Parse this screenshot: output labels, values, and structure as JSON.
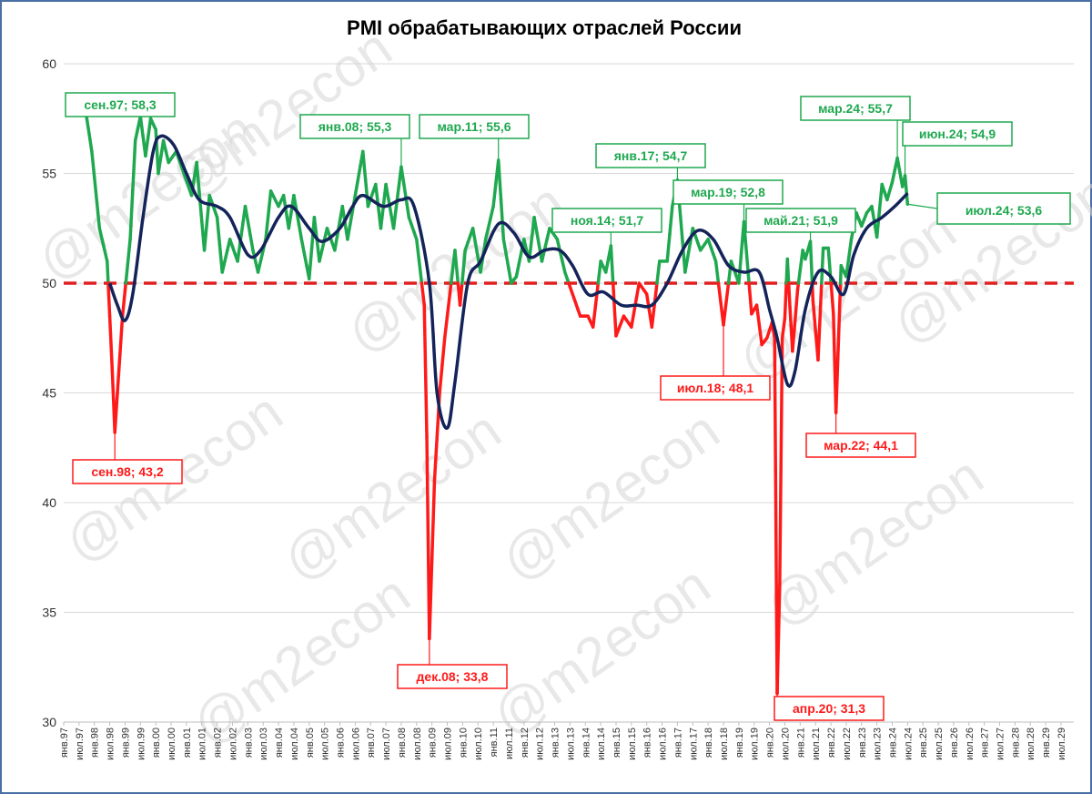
{
  "title": "PMI обрабатывающих отраслей России",
  "watermark": "@m2econ",
  "colors": {
    "above": "#1fa84f",
    "below": "#ff1a1a",
    "average": "#14235a",
    "threshold": "#e02020",
    "grid": "#d9d9d9",
    "frame": "#4a6fa5"
  },
  "chart_data": {
    "type": "line",
    "title": "PMI обрабатывающих отраслей России",
    "ylim": [
      30,
      60
    ],
    "yticks": [
      30,
      35,
      40,
      45,
      50,
      55,
      60
    ],
    "threshold": 50,
    "grid": true,
    "x_start": "1997-01",
    "x_end": "2029-12",
    "xtick_labels": [
      "янв.97",
      "июл.97",
      "янв.98",
      "июл.98",
      "янв.99",
      "июл.99",
      "янв.00",
      "июл.00",
      "янв.01",
      "июл.01",
      "янв.02",
      "июл.02",
      "янв.03",
      "июл.03",
      "янв.04",
      "июл.04",
      "янв.05",
      "июл.05",
      "янв.06",
      "июл.06",
      "янв.07",
      "июл.07",
      "янв.08",
      "июл.08",
      "янв.09",
      "июл.09",
      "янв.10",
      "июл.10",
      "янв.11",
      "июл.11",
      "янв.12",
      "июл.12",
      "янв.13",
      "июл.13",
      "янв.14",
      "июл.14",
      "янв.15",
      "июл.15",
      "янв.16",
      "июл.16",
      "янв.17",
      "июл.17",
      "янв.18",
      "июл.18",
      "янв.19",
      "июл.19",
      "янв.20",
      "июл.20",
      "янв.21",
      "июл.21",
      "янв.22",
      "июл.22",
      "янв.23",
      "июл.23",
      "янв.24",
      "июл.24",
      "янв.25",
      "июл.25",
      "янв.26",
      "июл.26",
      "янв.27",
      "июл.27",
      "янв.28",
      "июл.28",
      "янв.29",
      "июл.29"
    ],
    "pmi_anchors": [
      [
        "1997-09",
        58.3
      ],
      [
        "1997-12",
        56
      ],
      [
        "1998-03",
        52.5
      ],
      [
        "1998-06",
        51
      ],
      [
        "1998-07",
        48.5
      ],
      [
        "1998-08",
        46
      ],
      [
        "1998-09",
        43.2
      ],
      [
        "1998-10",
        45
      ],
      [
        "1998-12",
        48.5
      ],
      [
        "1999-03",
        52
      ],
      [
        "1999-05",
        56.5
      ],
      [
        "1999-07",
        57.6
      ],
      [
        "1999-09",
        55.8
      ],
      [
        "1999-11",
        57.5
      ],
      [
        "2000-01",
        57
      ],
      [
        "2000-02",
        55
      ],
      [
        "2000-04",
        56.5
      ],
      [
        "2000-06",
        55.5
      ],
      [
        "2000-09",
        56
      ],
      [
        "2000-12",
        55
      ],
      [
        "2001-03",
        54
      ],
      [
        "2001-05",
        55.5
      ],
      [
        "2001-08",
        51.5
      ],
      [
        "2001-10",
        54
      ],
      [
        "2002-01",
        53
      ],
      [
        "2002-03",
        50.5
      ],
      [
        "2002-06",
        52
      ],
      [
        "2002-09",
        51
      ],
      [
        "2002-12",
        53.5
      ],
      [
        "2003-03",
        51.5
      ],
      [
        "2003-05",
        50.5
      ],
      [
        "2003-08",
        52
      ],
      [
        "2003-10",
        54.2
      ],
      [
        "2004-01",
        53.5
      ],
      [
        "2004-03",
        54
      ],
      [
        "2004-05",
        52.5
      ],
      [
        "2004-07",
        54
      ],
      [
        "2004-10",
        52
      ],
      [
        "2005-01",
        50.2
      ],
      [
        "2005-03",
        53
      ],
      [
        "2005-05",
        51
      ],
      [
        "2005-08",
        52.5
      ],
      [
        "2005-11",
        51.5
      ],
      [
        "2006-02",
        53.5
      ],
      [
        "2006-04",
        52
      ],
      [
        "2006-07",
        54
      ],
      [
        "2006-10",
        56
      ],
      [
        "2006-12",
        53.5
      ],
      [
        "2007-03",
        54.5
      ],
      [
        "2007-05",
        52.5
      ],
      [
        "2007-07",
        54.5
      ],
      [
        "2007-10",
        52.5
      ],
      [
        "2008-01",
        55.3
      ],
      [
        "2008-04",
        53
      ],
      [
        "2008-07",
        52
      ],
      [
        "2008-09",
        50
      ],
      [
        "2008-10",
        49
      ],
      [
        "2008-11",
        43
      ],
      [
        "2008-12",
        33.8
      ],
      [
        "2009-02",
        41
      ],
      [
        "2009-04",
        45
      ],
      [
        "2009-06",
        47.5
      ],
      [
        "2009-08",
        49.5
      ],
      [
        "2009-10",
        51.5
      ],
      [
        "2009-12",
        49
      ],
      [
        "2010-02",
        51.5
      ],
      [
        "2010-05",
        52.5
      ],
      [
        "2010-08",
        50.5
      ],
      [
        "2010-10",
        52
      ],
      [
        "2011-01",
        53.5
      ],
      [
        "2011-03",
        55.6
      ],
      [
        "2011-05",
        52
      ],
      [
        "2011-08",
        50
      ],
      [
        "2011-10",
        50.3
      ],
      [
        "2012-01",
        52
      ],
      [
        "2012-03",
        51
      ],
      [
        "2012-05",
        53
      ],
      [
        "2012-08",
        51
      ],
      [
        "2012-11",
        52.5
      ],
      [
        "2013-02",
        52
      ],
      [
        "2013-05",
        50.5
      ],
      [
        "2013-08",
        49.5
      ],
      [
        "2013-11",
        48.5
      ],
      [
        "2014-02",
        48.5
      ],
      [
        "2014-04",
        48
      ],
      [
        "2014-07",
        51
      ],
      [
        "2014-09",
        50.5
      ],
      [
        "2014-11",
        51.7
      ],
      [
        "2015-01",
        47.6
      ],
      [
        "2015-04",
        48.5
      ],
      [
        "2015-07",
        48
      ],
      [
        "2015-10",
        50
      ],
      [
        "2016-01",
        49.5
      ],
      [
        "2016-03",
        48
      ],
      [
        "2016-06",
        51
      ],
      [
        "2016-09",
        51
      ],
      [
        "2016-11",
        53.5
      ],
      [
        "2017-01",
        54.7
      ],
      [
        "2017-04",
        50.5
      ],
      [
        "2017-07",
        52.5
      ],
      [
        "2017-10",
        51.5
      ],
      [
        "2018-01",
        52
      ],
      [
        "2018-04",
        51
      ],
      [
        "2018-07",
        48.1
      ],
      [
        "2018-10",
        51
      ],
      [
        "2019-01",
        50
      ],
      [
        "2019-03",
        52.8
      ],
      [
        "2019-06",
        48.6
      ],
      [
        "2019-08",
        49
      ],
      [
        "2019-10",
        47.2
      ],
      [
        "2019-12",
        47.5
      ],
      [
        "2020-02",
        48.2
      ],
      [
        "2020-03",
        47.5
      ],
      [
        "2020-04",
        31.3
      ],
      [
        "2020-05",
        36.2
      ],
      [
        "2020-06",
        47.5
      ],
      [
        "2020-07",
        48.4
      ],
      [
        "2020-08",
        51.1
      ],
      [
        "2020-09",
        48.9
      ],
      [
        "2020-10",
        46.9
      ],
      [
        "2020-12",
        49.7
      ],
      [
        "2021-02",
        51.5
      ],
      [
        "2021-03",
        51.1
      ],
      [
        "2021-05",
        51.9
      ],
      [
        "2021-06",
        49.2
      ],
      [
        "2021-08",
        46.5
      ],
      [
        "2021-10",
        51.6
      ],
      [
        "2021-12",
        51.6
      ],
      [
        "2022-02",
        48.6
      ],
      [
        "2022-03",
        44.1
      ],
      [
        "2022-05",
        50.8
      ],
      [
        "2022-07",
        50.3
      ],
      [
        "2022-09",
        52
      ],
      [
        "2022-11",
        53.2
      ],
      [
        "2023-01",
        52.6
      ],
      [
        "2023-03",
        53.2
      ],
      [
        "2023-05",
        53.5
      ],
      [
        "2023-07",
        52.1
      ],
      [
        "2023-09",
        54.5
      ],
      [
        "2023-11",
        53.8
      ],
      [
        "2024-01",
        54.6
      ],
      [
        "2024-03",
        55.7
      ],
      [
        "2024-05",
        54.4
      ],
      [
        "2024-06",
        54.9
      ],
      [
        "2024-07",
        53.6
      ]
    ],
    "avg_anchors": [
      [
        "1998-07",
        50
      ],
      [
        "1998-10",
        49
      ],
      [
        "1999-01",
        48.3
      ],
      [
        "1999-04",
        49.5
      ],
      [
        "1999-08",
        53
      ],
      [
        "1999-12",
        56
      ],
      [
        "2000-03",
        56.7
      ],
      [
        "2000-08",
        56.3
      ],
      [
        "2001-01",
        55
      ],
      [
        "2001-06",
        53.8
      ],
      [
        "2002-01",
        53.5
      ],
      [
        "2002-06",
        53
      ],
      [
        "2003-01",
        51.3
      ],
      [
        "2003-06",
        51.5
      ],
      [
        "2004-01",
        53
      ],
      [
        "2004-06",
        53.5
      ],
      [
        "2005-01",
        52.5
      ],
      [
        "2005-06",
        51.9
      ],
      [
        "2006-01",
        52.5
      ],
      [
        "2006-06",
        53.5
      ],
      [
        "2006-10",
        54
      ],
      [
        "2007-06",
        53.5
      ],
      [
        "2008-01",
        53.8
      ],
      [
        "2008-06",
        53.5
      ],
      [
        "2008-12",
        50
      ],
      [
        "2009-03",
        45
      ],
      [
        "2009-07",
        43.4
      ],
      [
        "2009-10",
        45.5
      ],
      [
        "2010-03",
        50
      ],
      [
        "2010-08",
        51
      ],
      [
        "2011-03",
        52.7
      ],
      [
        "2011-09",
        52.3
      ],
      [
        "2012-03",
        51.2
      ],
      [
        "2012-09",
        51.5
      ],
      [
        "2013-03",
        51.5
      ],
      [
        "2013-08",
        50.8
      ],
      [
        "2014-02",
        49.5
      ],
      [
        "2014-08",
        49.6
      ],
      [
        "2015-03",
        49
      ],
      [
        "2015-09",
        49
      ],
      [
        "2016-03",
        49
      ],
      [
        "2016-09",
        50
      ],
      [
        "2017-03",
        51.5
      ],
      [
        "2017-09",
        52.4
      ],
      [
        "2018-03",
        52
      ],
      [
        "2018-09",
        50.8
      ],
      [
        "2019-03",
        50.5
      ],
      [
        "2019-09",
        50.5
      ],
      [
        "2020-01",
        48.8
      ],
      [
        "2020-04",
        47.5
      ],
      [
        "2020-08",
        45.4
      ],
      [
        "2020-11",
        46
      ],
      [
        "2021-03",
        48.8
      ],
      [
        "2021-08",
        50.5
      ],
      [
        "2022-01",
        50.3
      ],
      [
        "2022-06",
        49.5
      ],
      [
        "2022-10",
        51.3
      ],
      [
        "2023-03",
        52.5
      ],
      [
        "2023-09",
        53
      ],
      [
        "2024-02",
        53.5
      ],
      [
        "2024-07",
        54.1
      ]
    ],
    "annotations": [
      {
        "label": "сен.97; 58,3",
        "date": "1997-09",
        "value": 58.3,
        "color": "above"
      },
      {
        "label": "сен.98; 43,2",
        "date": "1998-09",
        "value": 43.2,
        "color": "below"
      },
      {
        "label": "янв.08; 55,3",
        "date": "2008-01",
        "value": 55.3,
        "color": "above"
      },
      {
        "label": "дек.08; 33,8",
        "date": "2008-12",
        "value": 33.8,
        "color": "below"
      },
      {
        "label": "мар.11; 55,6",
        "date": "2011-03",
        "value": 55.6,
        "color": "above"
      },
      {
        "label": "ноя.14; 51,7",
        "date": "2014-11",
        "value": 51.7,
        "color": "above"
      },
      {
        "label": "янв.17; 54,7",
        "date": "2017-01",
        "value": 54.7,
        "color": "above"
      },
      {
        "label": "июл.18; 48,1",
        "date": "2018-07",
        "value": 48.1,
        "color": "below"
      },
      {
        "label": "мар.19; 52,8",
        "date": "2019-03",
        "value": 52.8,
        "color": "above"
      },
      {
        "label": "апр.20; 31,3",
        "date": "2020-04",
        "value": 31.3,
        "color": "below"
      },
      {
        "label": "май.21; 51,9",
        "date": "2021-05",
        "value": 51.9,
        "color": "above"
      },
      {
        "label": "мар.22; 44,1",
        "date": "2022-03",
        "value": 44.1,
        "color": "below"
      },
      {
        "label": "мар.24; 55,7",
        "date": "2024-03",
        "value": 55.7,
        "color": "above"
      },
      {
        "label": "июн.24; 54,9",
        "date": "2024-06",
        "value": 54.9,
        "color": "above"
      },
      {
        "label": "июл.24; 53,6",
        "date": "2024-07",
        "value": 53.6,
        "color": "above"
      }
    ]
  }
}
